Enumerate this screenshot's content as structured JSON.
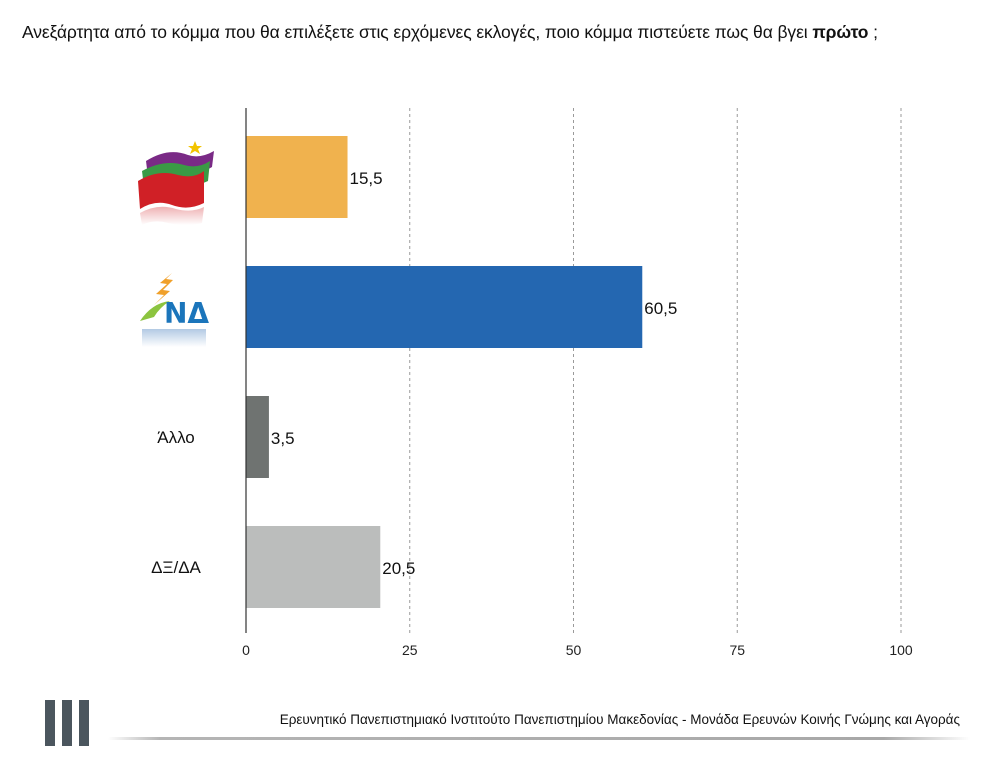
{
  "title": {
    "text_before": "Ανεξάρτητα από το κόμμα που θα επιλέξετε στις ερχόμενες εκλογές, ποιο κόμμα πιστεύετε πως θα βγει",
    "text_bold": "πρώτο",
    "text_after": ";"
  },
  "footer": {
    "text": "Ερευνητικό Πανεπιστημιακό Ινστιτούτο Πανεπιστημίου Μακεδονίας - Μονάδα Ερευνών Κοινής Γνώμης και Αγοράς"
  },
  "chart_data": {
    "type": "bar",
    "orientation": "horizontal",
    "title": "Ανεξάρτητα από το κόμμα που θα επιλέξετε στις ερχόμενες εκλογές, ποιο κόμμα πιστεύετε πως θα βγει πρώτο ;",
    "categories": [
      "ΣΥΡΙΖΑ",
      "ΝΔ",
      "Άλλο",
      "ΔΞ/ΔΑ"
    ],
    "category_display": [
      "syriza-logo",
      "nd-logo",
      "text",
      "text"
    ],
    "values": [
      15.5,
      60.5,
      3.5,
      20.5
    ],
    "value_labels": [
      "15,5",
      "60,5",
      "3,5",
      "20,5"
    ],
    "colors": [
      "#f0b24e",
      "#2467b1",
      "#6f7371",
      "#bbbdbc"
    ],
    "xlim": [
      0,
      100
    ],
    "xticks": [
      0,
      25,
      50,
      75,
      100
    ],
    "grid": "vertical dashed",
    "xlabel": "",
    "ylabel": "",
    "nd_logo_text": "ΝΔ"
  }
}
